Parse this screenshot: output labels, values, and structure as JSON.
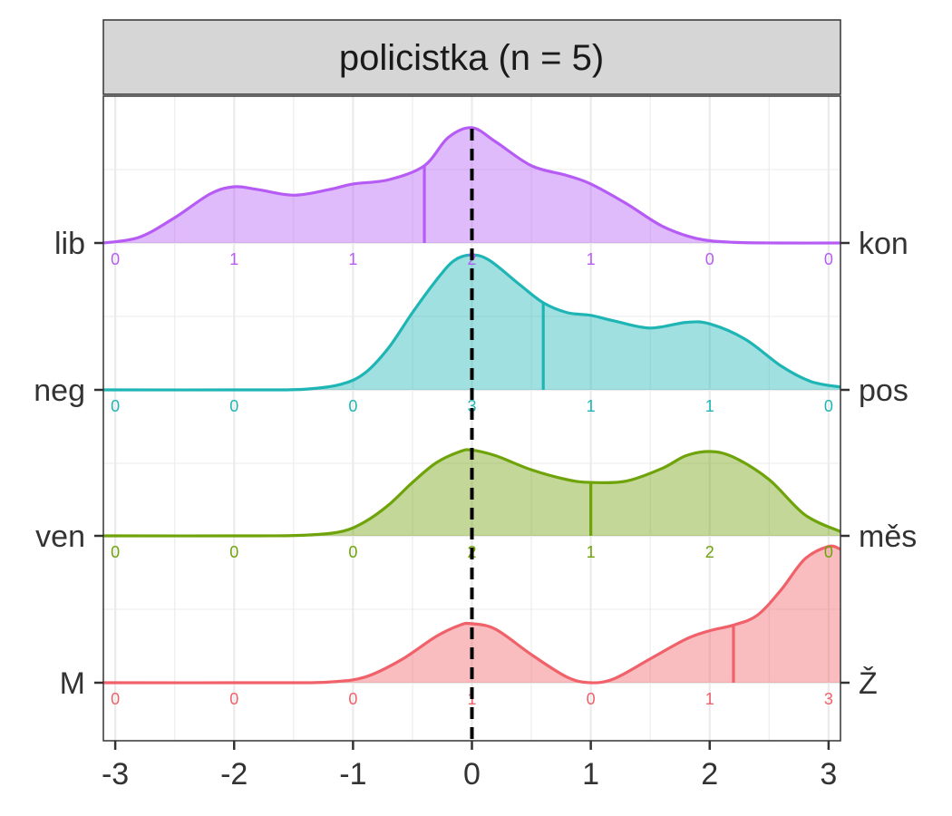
{
  "chart_data": {
    "type": "ridgeline density",
    "title": "policistka (n = 5)",
    "x_ticks": [
      -3,
      -2,
      -1,
      0,
      1,
      2,
      3
    ],
    "xlim": [
      -3.1,
      3.1
    ],
    "grid": true,
    "reference_line_x": 0,
    "series": [
      {
        "left_label": "lib",
        "right_label": "kon",
        "color": "#b65cf5",
        "counts": [
          0,
          1,
          1,
          2,
          1,
          0,
          0
        ],
        "mean": -0.4,
        "density": [
          [
            -3.1,
            0
          ],
          [
            -2.8,
            0.04
          ],
          [
            -2.5,
            0.18
          ],
          [
            -2.2,
            0.35
          ],
          [
            -2.0,
            0.4
          ],
          [
            -1.8,
            0.38
          ],
          [
            -1.5,
            0.34
          ],
          [
            -1.2,
            0.38
          ],
          [
            -1.0,
            0.42
          ],
          [
            -0.7,
            0.45
          ],
          [
            -0.4,
            0.55
          ],
          [
            -0.2,
            0.75
          ],
          [
            0.0,
            0.82
          ],
          [
            0.2,
            0.72
          ],
          [
            0.5,
            0.55
          ],
          [
            0.8,
            0.48
          ],
          [
            1.0,
            0.42
          ],
          [
            1.3,
            0.28
          ],
          [
            1.6,
            0.12
          ],
          [
            1.9,
            0.03
          ],
          [
            2.2,
            0.005
          ],
          [
            2.6,
            0
          ],
          [
            3.1,
            0
          ]
        ]
      },
      {
        "left_label": "neg",
        "right_label": "pos",
        "color": "#1fb5b5",
        "counts": [
          0,
          0,
          0,
          3,
          1,
          1,
          0
        ],
        "mean": 0.6,
        "density": [
          [
            -3.1,
            0
          ],
          [
            -1.8,
            0
          ],
          [
            -1.4,
            0.005
          ],
          [
            -1.1,
            0.04
          ],
          [
            -0.9,
            0.12
          ],
          [
            -0.7,
            0.3
          ],
          [
            -0.5,
            0.55
          ],
          [
            -0.3,
            0.78
          ],
          [
            -0.15,
            0.92
          ],
          [
            0.0,
            0.96
          ],
          [
            0.15,
            0.92
          ],
          [
            0.4,
            0.75
          ],
          [
            0.6,
            0.62
          ],
          [
            0.8,
            0.55
          ],
          [
            1.0,
            0.53
          ],
          [
            1.2,
            0.49
          ],
          [
            1.5,
            0.44
          ],
          [
            1.8,
            0.48
          ],
          [
            2.0,
            0.47
          ],
          [
            2.3,
            0.36
          ],
          [
            2.6,
            0.17
          ],
          [
            2.85,
            0.06
          ],
          [
            3.1,
            0.02
          ]
        ]
      },
      {
        "left_label": "ven",
        "right_label": "měs",
        "color": "#6fa30a",
        "counts": [
          0,
          0,
          0,
          2,
          1,
          2,
          0
        ],
        "mean": 1.0,
        "density": [
          [
            -3.1,
            0
          ],
          [
            -1.8,
            0
          ],
          [
            -1.4,
            0.005
          ],
          [
            -1.1,
            0.03
          ],
          [
            -0.9,
            0.1
          ],
          [
            -0.7,
            0.22
          ],
          [
            -0.5,
            0.38
          ],
          [
            -0.3,
            0.52
          ],
          [
            -0.1,
            0.6
          ],
          [
            0.0,
            0.61
          ],
          [
            0.2,
            0.57
          ],
          [
            0.5,
            0.47
          ],
          [
            0.8,
            0.4
          ],
          [
            1.0,
            0.38
          ],
          [
            1.3,
            0.39
          ],
          [
            1.6,
            0.48
          ],
          [
            1.8,
            0.57
          ],
          [
            2.0,
            0.6
          ],
          [
            2.2,
            0.56
          ],
          [
            2.5,
            0.4
          ],
          [
            2.8,
            0.15
          ],
          [
            3.1,
            0.03
          ]
        ]
      },
      {
        "left_label": "M",
        "right_label": "Ž",
        "color": "#f0616a",
        "counts": [
          0,
          0,
          0,
          1,
          0,
          1,
          3
        ],
        "mean": 2.2,
        "density": [
          [
            -3.1,
            0
          ],
          [
            -1.6,
            0
          ],
          [
            -1.2,
            0.005
          ],
          [
            -0.9,
            0.04
          ],
          [
            -0.6,
            0.16
          ],
          [
            -0.3,
            0.33
          ],
          [
            -0.1,
            0.41
          ],
          [
            0.0,
            0.42
          ],
          [
            0.2,
            0.38
          ],
          [
            0.5,
            0.2
          ],
          [
            0.8,
            0.04
          ],
          [
            1.0,
            0.0
          ],
          [
            1.2,
            0.03
          ],
          [
            1.5,
            0.17
          ],
          [
            1.8,
            0.31
          ],
          [
            2.0,
            0.37
          ],
          [
            2.2,
            0.41
          ],
          [
            2.4,
            0.48
          ],
          [
            2.6,
            0.66
          ],
          [
            2.8,
            0.88
          ],
          [
            3.0,
            0.97
          ],
          [
            3.1,
            0.95
          ]
        ]
      }
    ]
  }
}
